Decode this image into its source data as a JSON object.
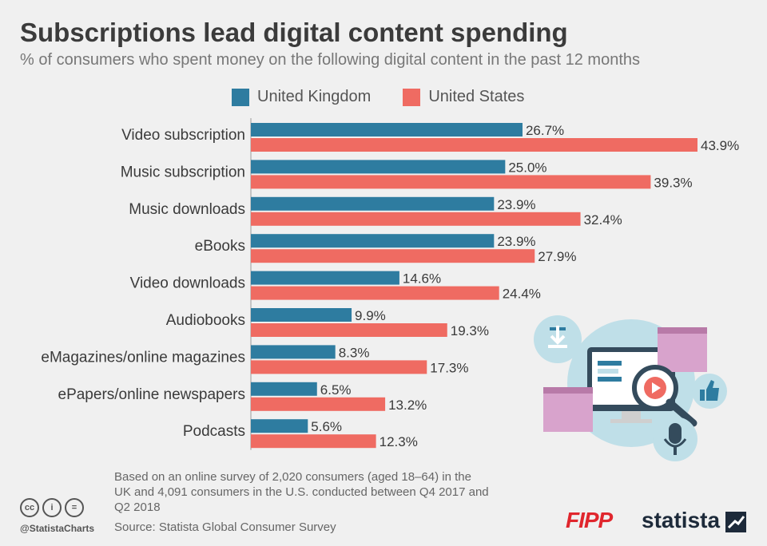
{
  "header": {
    "title": "Subscriptions lead digital content spending",
    "subtitle": "% of consumers who spent money on the following digital content in the past 12 months"
  },
  "colors": {
    "uk": "#2e7ca0",
    "us": "#ef6b62",
    "background": "#f0f0f0"
  },
  "chart_data": {
    "type": "bar",
    "orientation": "horizontal",
    "categories": [
      "Video subscription",
      "Music subscription",
      "Music downloads",
      "eBooks",
      "Video downloads",
      "Audiobooks",
      "eMagazines/online magazines",
      "ePapers/online newspapers",
      "Podcasts"
    ],
    "series": [
      {
        "name": "United Kingdom",
        "values": [
          26.7,
          25.0,
          23.9,
          23.9,
          14.6,
          9.9,
          8.3,
          6.5,
          5.6
        ],
        "labels": [
          "26.7%",
          "25.0%",
          "23.9%",
          "23.9%",
          "14.6%",
          "9.9%",
          "8.3%",
          "6.5%",
          "5.6%"
        ]
      },
      {
        "name": "United States",
        "values": [
          43.9,
          39.3,
          32.4,
          27.9,
          24.4,
          19.3,
          17.3,
          13.2,
          12.3
        ],
        "labels": [
          "43.9%",
          "39.3%",
          "32.4%",
          "27.9%",
          "24.4%",
          "19.3%",
          "17.3%",
          "13.2%",
          "12.3%"
        ]
      }
    ],
    "xlim": [
      0,
      43.9
    ],
    "legend": "top",
    "grid": false
  },
  "footer": {
    "note": "Based on an online survey of 2,020 consumers (aged 18–64) in the UK and 4,091 consumers in the U.S. conducted between Q4 2017 and Q2 2018",
    "source": "Source: Statista Global Consumer Survey",
    "handle": "@StatistaCharts",
    "cc_icons": [
      "cc",
      "by",
      "nd"
    ],
    "brand_fipp": "FIPP",
    "brand_statista": "statista"
  },
  "illustration": {
    "icons": [
      "download-icon",
      "monitor-icon",
      "play-icon",
      "magnifier-icon",
      "thumbs-up-icon",
      "microphone-icon",
      "document-icon"
    ]
  }
}
